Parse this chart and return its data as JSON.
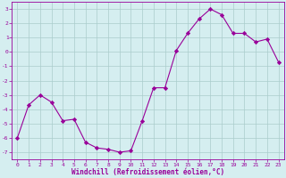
{
  "x": [
    0,
    1,
    2,
    3,
    4,
    5,
    6,
    7,
    8,
    9,
    10,
    11,
    12,
    13,
    14,
    15,
    16,
    17,
    18,
    19,
    20,
    21,
    22,
    23
  ],
  "y": [
    -6.0,
    -3.7,
    -3.0,
    -3.5,
    -4.8,
    -4.7,
    -6.3,
    -6.7,
    -6.8,
    -7.0,
    -6.9,
    -4.8,
    -2.5,
    -2.5,
    0.1,
    1.3,
    2.3,
    3.0,
    2.6,
    1.3,
    1.3,
    0.7,
    0.9,
    -0.7
  ],
  "line_color": "#990099",
  "marker": "D",
  "markersize": 2.2,
  "linewidth": 0.8,
  "xlabel": "Windchill (Refroidissement éolien,°C)",
  "xlabel_color": "#990099",
  "bg_color": "#d5eef0",
  "grid_color": "#aacccc",
  "tick_color": "#990099",
  "ylim": [
    -7.5,
    3.5
  ],
  "yticks": [
    -7,
    -6,
    -5,
    -4,
    -3,
    -2,
    -1,
    0,
    1,
    2,
    3
  ],
  "xticks": [
    0,
    1,
    2,
    3,
    4,
    5,
    6,
    7,
    8,
    9,
    10,
    11,
    12,
    13,
    14,
    15,
    16,
    17,
    18,
    19,
    20,
    21,
    22,
    23
  ],
  "spine_color": "#990099",
  "tick_fontsize": 4.5,
  "xlabel_fontsize": 5.5
}
